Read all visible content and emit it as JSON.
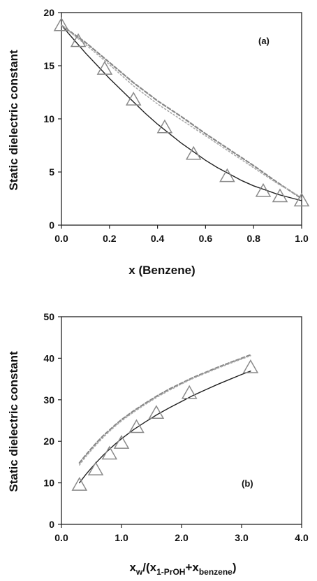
{
  "chart_data": [
    {
      "type": "line",
      "panel_label": "(a)",
      "xlabel": "x (Benzene)",
      "ylabel": "Static dielectric constant",
      "xlim": [
        0,
        1
      ],
      "ylim": [
        0,
        20
      ],
      "xticks": [
        "0.0",
        "0.2",
        "0.4",
        "0.6",
        "0.8",
        "1.0"
      ],
      "yticks": [
        "0",
        "5",
        "10",
        "15",
        "20"
      ],
      "grid": false,
      "series": [
        {
          "style": "triangle-markers",
          "color": "#8a8a8a",
          "x": [
            0.0,
            0.07,
            0.18,
            0.3,
            0.43,
            0.55,
            0.69,
            0.84,
            0.91,
            1.0
          ],
          "y": [
            18.8,
            17.3,
            14.7,
            11.8,
            9.2,
            6.7,
            4.6,
            3.2,
            2.7,
            2.3
          ]
        },
        {
          "style": "solid",
          "color": "#222222",
          "x": [
            0.0,
            0.05,
            0.1,
            0.15,
            0.2,
            0.25,
            0.3,
            0.35,
            0.4,
            0.45,
            0.5,
            0.55,
            0.6,
            0.65,
            0.7,
            0.75,
            0.8,
            0.85,
            0.9,
            0.95,
            1.0
          ],
          "y": [
            18.8,
            17.5,
            16.2,
            15.0,
            13.8,
            12.7,
            11.6,
            10.5,
            9.5,
            8.6,
            7.7,
            6.9,
            6.1,
            5.4,
            4.8,
            4.2,
            3.7,
            3.3,
            2.9,
            2.6,
            2.3
          ]
        },
        {
          "style": "dashed",
          "color": "#888888",
          "x": [
            0.0,
            0.1,
            0.2,
            0.3,
            0.4,
            0.5,
            0.6,
            0.7,
            0.8,
            0.9,
            1.0
          ],
          "y": [
            18.8,
            17.2,
            15.3,
            13.4,
            11.7,
            10.2,
            8.6,
            7.1,
            5.6,
            4.0,
            2.5
          ]
        },
        {
          "style": "dotted",
          "color": "#aaaaaa",
          "x": [
            0.0,
            0.1,
            0.2,
            0.3,
            0.4,
            0.5,
            0.6,
            0.7,
            0.8,
            0.9,
            1.0
          ],
          "y": [
            18.8,
            17.0,
            15.1,
            13.1,
            11.4,
            9.9,
            8.4,
            6.9,
            5.4,
            3.9,
            2.6
          ]
        }
      ]
    },
    {
      "type": "line",
      "panel_label": "(b)",
      "xlabel": {
        "base": "x",
        "w": "w",
        "open": "/(x",
        "sub1": "1-PrOH",
        "plus": "+x",
        "sub2": "benzene",
        "close": ")"
      },
      "ylabel": "Static dielectric constant",
      "xlim": [
        0,
        4
      ],
      "ylim": [
        0,
        50
      ],
      "xticks": [
        "0.0",
        "1.0",
        "2.0",
        "3.0",
        "4.0"
      ],
      "yticks": [
        "0",
        "10",
        "20",
        "30",
        "40",
        "50"
      ],
      "grid": false,
      "series": [
        {
          "style": "triangle-markers",
          "color": "#8a8a8a",
          "x": [
            0.3,
            0.57,
            0.8,
            1.0,
            1.25,
            1.58,
            2.13,
            3.15
          ],
          "y": [
            9.5,
            13.2,
            17.0,
            19.6,
            23.4,
            26.8,
            31.6,
            37.8
          ]
        },
        {
          "style": "solid",
          "color": "#222222",
          "x": [
            0.3,
            0.4,
            0.5,
            0.6,
            0.7,
            0.8,
            0.9,
            1.0,
            1.2,
            1.4,
            1.6,
            1.8,
            2.0,
            2.2,
            2.4,
            2.6,
            2.8,
            3.0,
            3.15
          ],
          "y": [
            10.0,
            11.9,
            13.6,
            15.2,
            16.7,
            18.1,
            19.4,
            20.6,
            22.8,
            24.7,
            26.5,
            28.1,
            29.6,
            31.1,
            32.4,
            33.7,
            34.9,
            36.1,
            36.9
          ]
        },
        {
          "style": "dashed",
          "color": "#888888",
          "x": [
            0.3,
            0.4,
            0.5,
            0.6,
            0.7,
            0.8,
            0.9,
            1.0,
            1.2,
            1.4,
            1.6,
            1.8,
            2.0,
            2.2,
            2.4,
            2.6,
            2.8,
            3.0,
            3.15
          ],
          "y": [
            14.8,
            16.6,
            18.3,
            19.9,
            21.4,
            22.7,
            24.0,
            25.2,
            27.3,
            29.2,
            31.0,
            32.6,
            34.0,
            35.4,
            36.6,
            37.8,
            38.9,
            40.0,
            40.8
          ]
        },
        {
          "style": "dotted",
          "color": "#aaaaaa",
          "x": [
            0.3,
            0.4,
            0.5,
            0.6,
            0.7,
            0.8,
            0.9,
            1.0,
            1.2,
            1.4,
            1.6,
            1.8,
            2.0,
            2.2,
            2.4,
            2.6,
            2.8,
            3.0,
            3.15
          ],
          "y": [
            14.3,
            16.2,
            17.9,
            19.5,
            21.0,
            22.4,
            23.7,
            24.9,
            27.0,
            28.9,
            30.7,
            32.3,
            33.8,
            35.2,
            36.4,
            37.6,
            38.7,
            39.8,
            40.6
          ]
        }
      ]
    }
  ]
}
